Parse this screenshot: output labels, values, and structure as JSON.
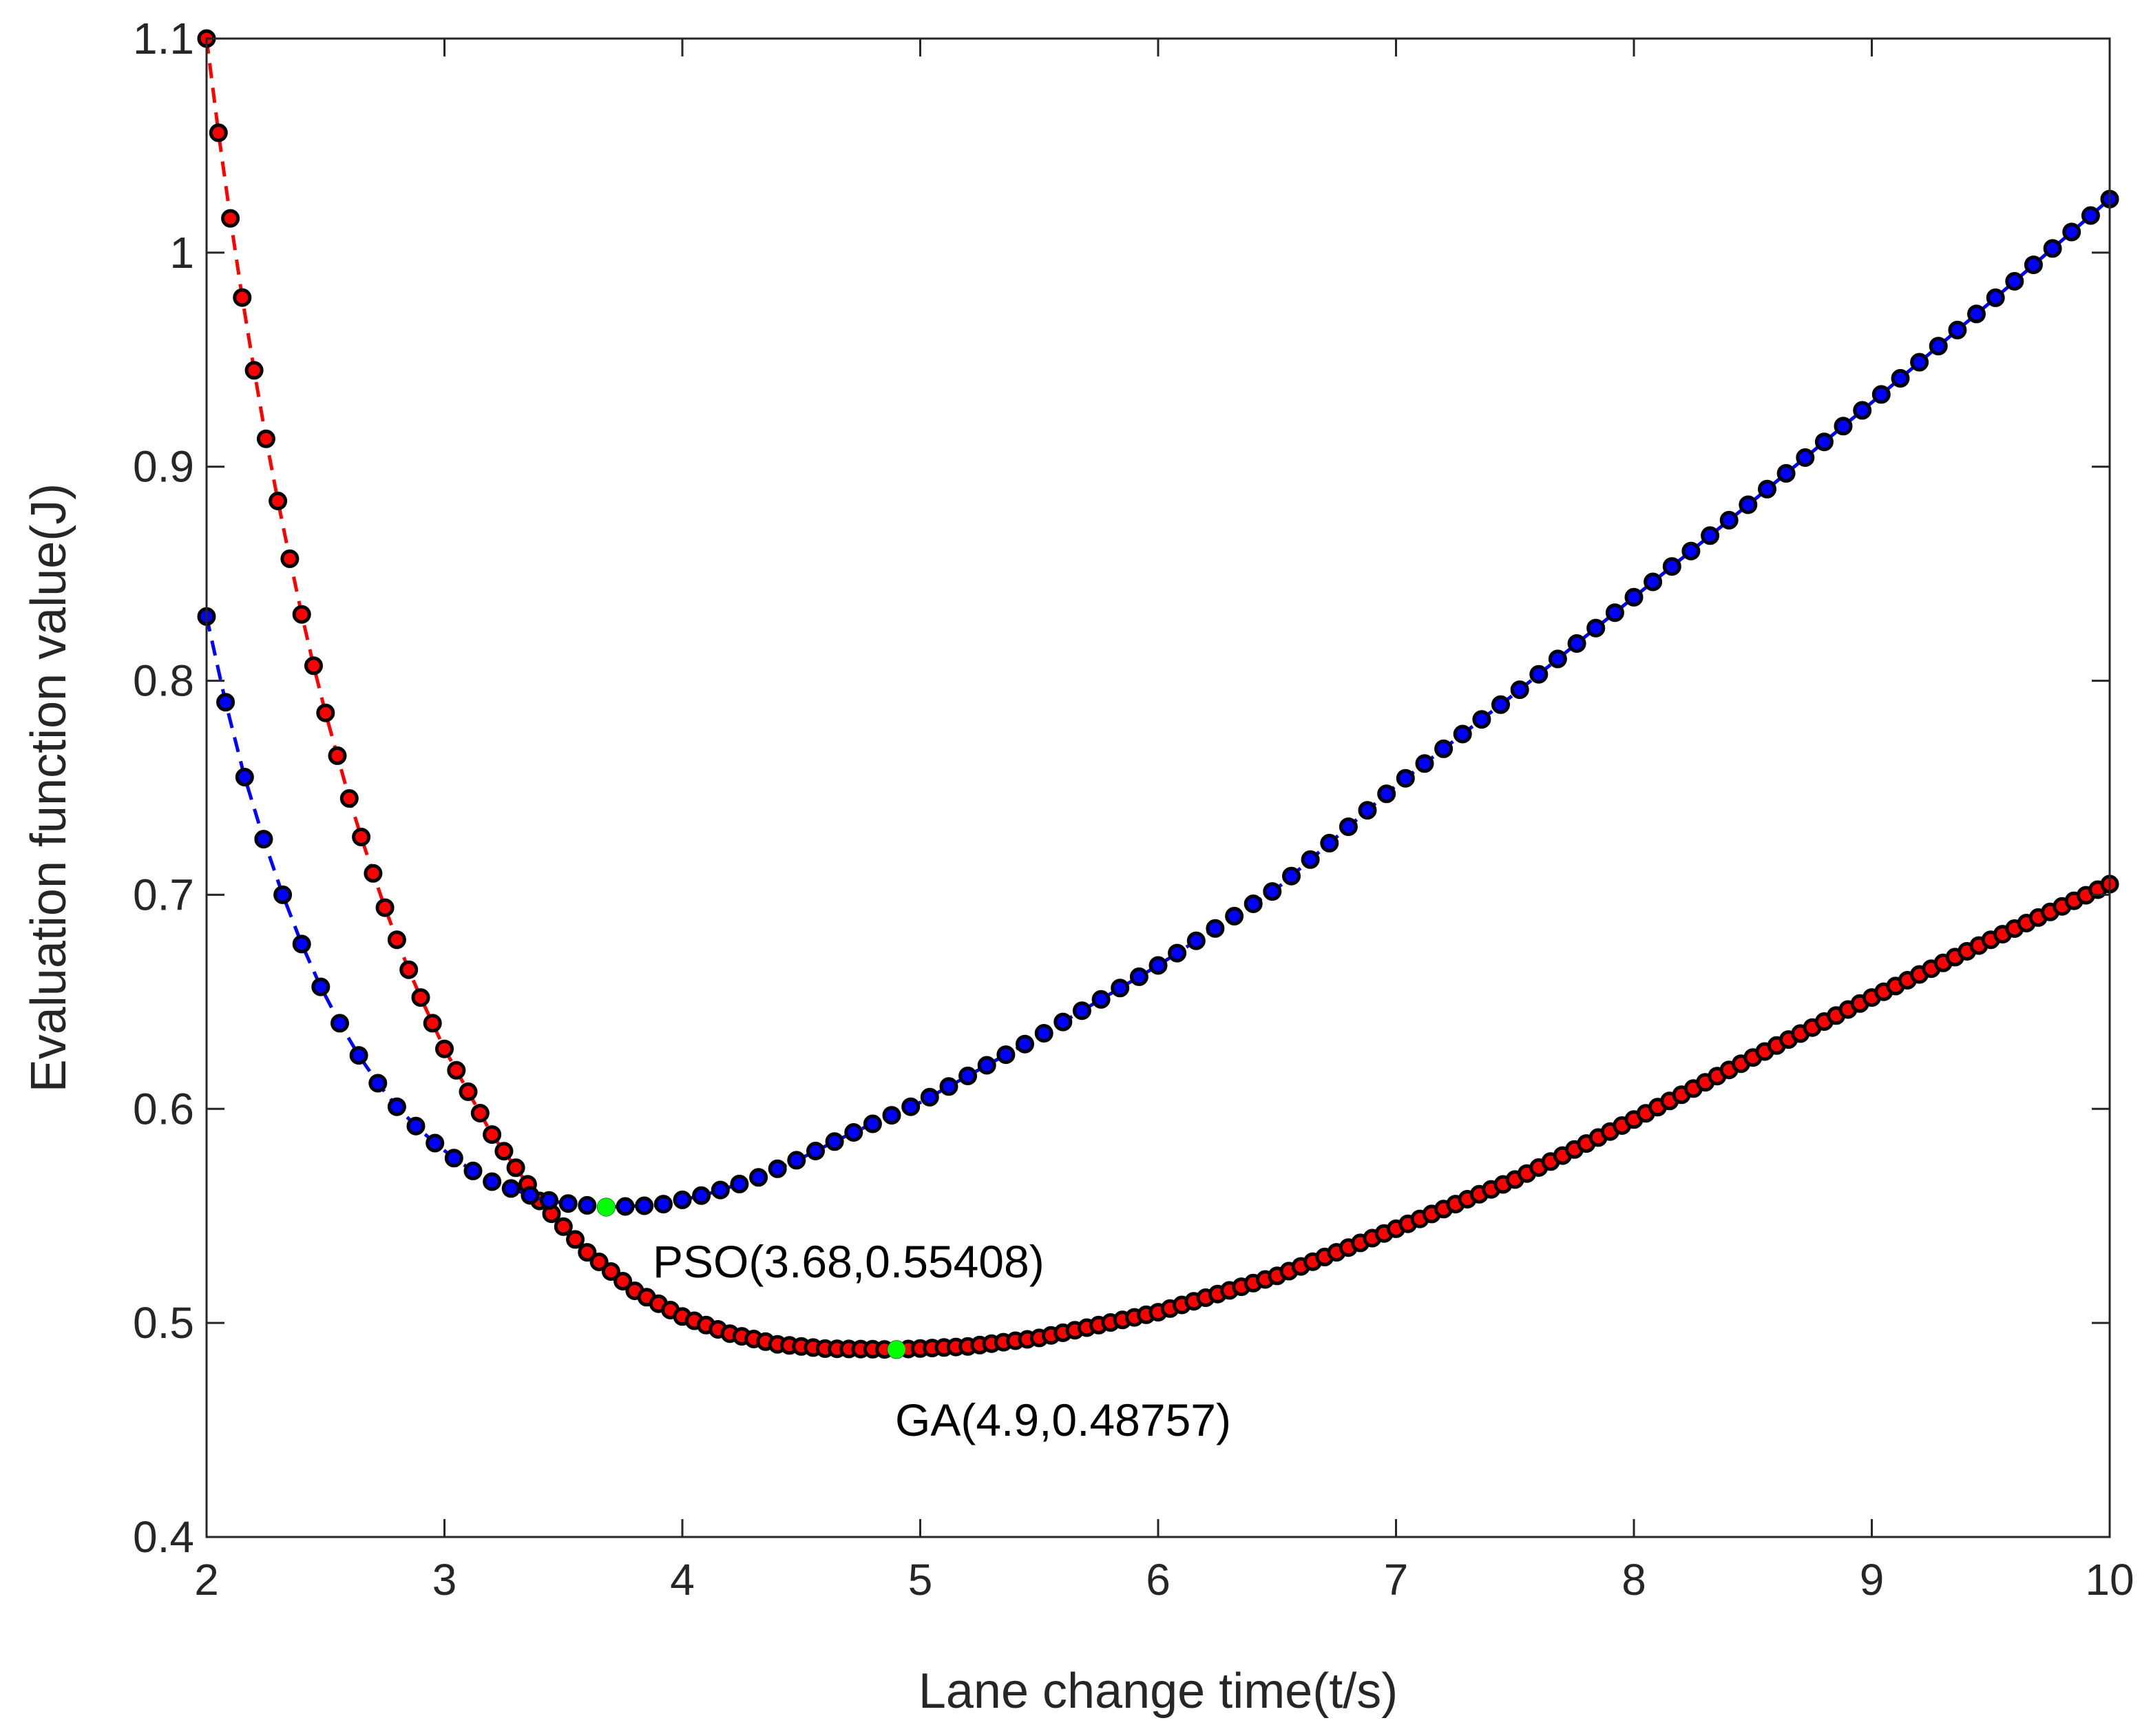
{
  "chart_data": {
    "type": "scatter",
    "title": "",
    "xlabel": "Lane change time(t/s)",
    "ylabel": "Evaluation function value(J)",
    "xlim": [
      2,
      10
    ],
    "ylim": [
      0.4,
      1.1
    ],
    "xticks": [
      "2",
      "3",
      "4",
      "5",
      "6",
      "7",
      "8",
      "9",
      "10"
    ],
    "yticks": [
      "0.4",
      "0.5",
      "0.6",
      "0.7",
      "0.8",
      "0.9",
      "1",
      "1.1"
    ],
    "grid": false,
    "colors": {
      "series_ga": "#ff0000",
      "series_pso": "#0000ff",
      "marker_edge": "#000000",
      "optimum": "#00ff00",
      "axis": "#262626"
    },
    "series": [
      {
        "name": "GA",
        "line_style": "dashed",
        "marker": "circle",
        "color": "#ff0000",
        "x_start": 2.0,
        "x_end": 10.0,
        "step_dense": 0.05,
        "step_sparse": 0.05,
        "key_points": [
          [
            2.0,
            1.1
          ],
          [
            2.05,
            1.056
          ],
          [
            2.1,
            1.016
          ],
          [
            2.15,
            0.979
          ],
          [
            2.2,
            0.945
          ],
          [
            2.25,
            0.913
          ],
          [
            2.3,
            0.884
          ],
          [
            2.35,
            0.857
          ],
          [
            2.4,
            0.831
          ],
          [
            2.45,
            0.807
          ],
          [
            2.5,
            0.785
          ],
          [
            2.55,
            0.765
          ],
          [
            2.6,
            0.745
          ],
          [
            2.65,
            0.727
          ],
          [
            2.7,
            0.71
          ],
          [
            2.75,
            0.694
          ],
          [
            2.8,
            0.679
          ],
          [
            2.85,
            0.665
          ],
          [
            2.9,
            0.652
          ],
          [
            2.95,
            0.64
          ],
          [
            3.0,
            0.628
          ],
          [
            3.2,
            0.588
          ],
          [
            3.4,
            0.557
          ],
          [
            3.6,
            0.533
          ],
          [
            3.8,
            0.515
          ],
          [
            4.0,
            0.503
          ],
          [
            4.2,
            0.495
          ],
          [
            4.4,
            0.49
          ],
          [
            4.6,
            0.488
          ],
          [
            4.9,
            0.48757
          ],
          [
            5.2,
            0.489
          ],
          [
            5.5,
            0.493
          ],
          [
            6.0,
            0.505
          ],
          [
            6.5,
            0.522
          ],
          [
            7.0,
            0.544
          ],
          [
            7.5,
            0.567
          ],
          [
            8.0,
            0.595
          ],
          [
            8.5,
            0.624
          ],
          [
            9.0,
            0.652
          ],
          [
            9.5,
            0.679
          ],
          [
            10.0,
            0.705
          ]
        ],
        "optimum": {
          "x": 4.9,
          "y": 0.48757,
          "label": "GA(4.9,0.48757)"
        }
      },
      {
        "name": "PSO",
        "line_style": "dashed",
        "marker": "circle",
        "color": "#0000ff",
        "x_start": 2.0,
        "x_end": 10.0,
        "step_dense": 0.08,
        "step_sparse": 0.08,
        "key_points": [
          [
            2.0,
            0.83
          ],
          [
            2.08,
            0.79
          ],
          [
            2.16,
            0.755
          ],
          [
            2.24,
            0.726
          ],
          [
            2.32,
            0.7
          ],
          [
            2.4,
            0.677
          ],
          [
            2.48,
            0.657
          ],
          [
            2.56,
            0.64
          ],
          [
            2.64,
            0.625
          ],
          [
            2.72,
            0.612
          ],
          [
            2.8,
            0.601
          ],
          [
            2.88,
            0.592
          ],
          [
            2.96,
            0.584
          ],
          [
            3.04,
            0.577
          ],
          [
            3.12,
            0.571
          ],
          [
            3.2,
            0.566
          ],
          [
            3.3,
            0.562
          ],
          [
            3.4,
            0.558
          ],
          [
            3.5,
            0.556
          ],
          [
            3.68,
            0.55408
          ],
          [
            3.9,
            0.555
          ],
          [
            4.1,
            0.56
          ],
          [
            4.3,
            0.567
          ],
          [
            4.5,
            0.577
          ],
          [
            4.7,
            0.588
          ],
          [
            5.0,
            0.603
          ],
          [
            5.5,
            0.634
          ],
          [
            6.0,
            0.667
          ],
          [
            6.5,
            0.703
          ],
          [
            7.0,
            0.751
          ],
          [
            7.5,
            0.794
          ],
          [
            8.0,
            0.839
          ],
          [
            8.5,
            0.884
          ],
          [
            9.0,
            0.93
          ],
          [
            9.5,
            0.977
          ],
          [
            10.0,
            1.025
          ]
        ],
        "optimum": {
          "x": 3.68,
          "y": 0.55408,
          "label": "PSO(3.68,0.55408)"
        }
      }
    ]
  }
}
